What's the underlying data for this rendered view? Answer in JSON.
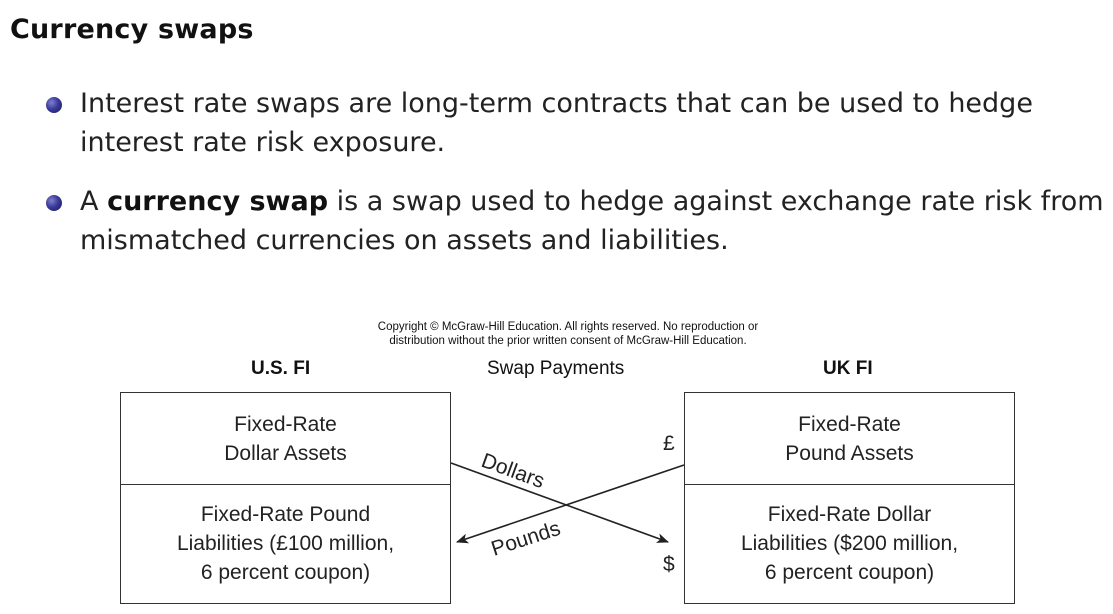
{
  "slide": {
    "title": "Currency swaps",
    "bullets": [
      {
        "text": "Interest rate swaps are long-term contracts that can be used to hedge interest rate risk exposure."
      },
      {
        "pre": "A ",
        "bold": "currency swap",
        "post": " is a swap used to hedge against exchange rate risk from mismatched currencies on assets and liabilities."
      }
    ]
  },
  "diagram": {
    "copyright_line1": "Copyright © McGraw-Hill Education.  All rights reserved. No reproduction or",
    "copyright_line2": "distribution without the prior written consent of McGraw-Hill Education.",
    "left_header": "U.S. FI",
    "middle_header": "Swap Payments",
    "right_header": "UK FI",
    "left_top": "Fixed-Rate\nDollar Assets",
    "left_bottom": "Fixed-Rate Pound\nLiabilities (£100 million,\n6 percent coupon)",
    "right_top": "Fixed-Rate\nPound Assets",
    "right_bottom": "Fixed-Rate Dollar\nLiabilities ($200 million,\n6 percent coupon)",
    "arrow_dollars_label": "Dollars",
    "arrow_pounds_label": "Pounds",
    "pound_symbol": "£",
    "dollar_symbol": "$"
  }
}
